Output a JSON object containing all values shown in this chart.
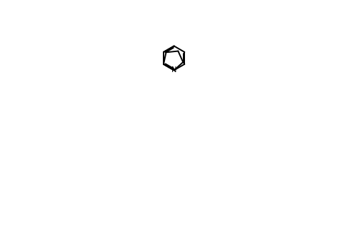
{
  "bg_color": "#ffffff",
  "line_color": "#000000",
  "line_width": 1.5,
  "fig_width": 5.04,
  "fig_height": 3.32,
  "dpi": 100
}
